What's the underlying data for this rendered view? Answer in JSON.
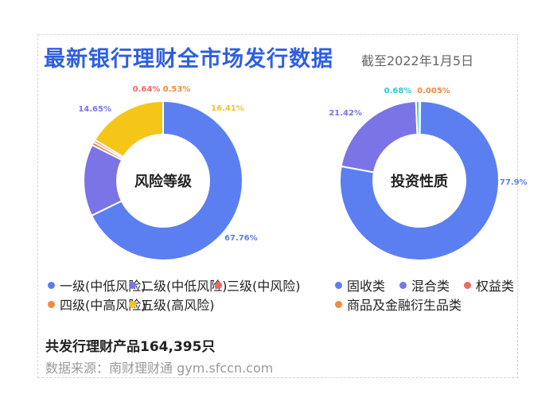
{
  "header": {
    "title": "最新银行理财全市场发行数据",
    "date": "截至2022年1月5日"
  },
  "chart_data": [
    {
      "type": "pie",
      "title": "风险等级",
      "categories": [
        "一级(中低风险)",
        "二级(中低风险)",
        "三级(中风险)",
        "四级(中高风险)",
        "五级(高风险)"
      ],
      "values": [
        67.76,
        14.65,
        0.64,
        0.53,
        16.41
      ],
      "value_labels": [
        "67.76%",
        "14.65%",
        "0.64%",
        "0.53%",
        "16.41%"
      ],
      "colors": [
        "#5b7ff0",
        "#7b74e6",
        "#ef6a5e",
        "#f08b3a",
        "#f5c518"
      ],
      "legend": "bottom"
    },
    {
      "type": "pie",
      "title": "投资性质",
      "categories": [
        "固收类",
        "混合类",
        "权益类",
        "商品及金融衍生品类"
      ],
      "values": [
        77.9,
        21.42,
        0.68,
        0.005
      ],
      "value_labels": [
        "77.9%",
        "21.42%",
        "0.68%",
        "0.005%"
      ],
      "colors": [
        "#5b7ff0",
        "#7b74e6",
        "#2cc9d6",
        "#f08b3a"
      ],
      "legend_colors": [
        "#5b7ff0",
        "#7b74e6",
        "#ef6a5e",
        "#f08b3a"
      ],
      "legend": "bottom"
    }
  ],
  "footer": {
    "total": "共发行理财产品164,395只",
    "source": "数据来源：南财理财通 gym.sfccn.com"
  }
}
